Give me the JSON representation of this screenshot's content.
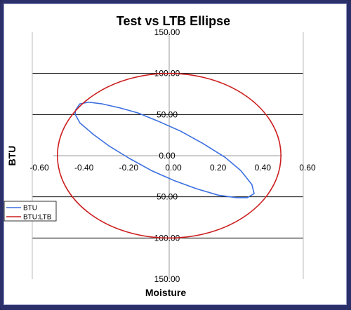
{
  "chart_data": {
    "type": "line",
    "title": "Test vs LTB Ellipse",
    "xlabel": "Moisture",
    "ylabel": "BTU",
    "xlim": [
      -0.6,
      0.6
    ],
    "ylim": [
      -150,
      150
    ],
    "x_ticks": [
      "-0.60",
      "-0.40",
      "-0.20",
      "0.00",
      "0.20",
      "0.40",
      "0.60"
    ],
    "y_ticks": [
      "150.00",
      "100.00",
      "50.00",
      "0.00",
      "50.00",
      "100.00",
      "150.00"
    ],
    "grid": "horizontal",
    "legend_position": "left",
    "series": [
      {
        "name": "BTU",
        "color": "#3b6fe0",
        "points": [
          [
            -0.42,
            55
          ],
          [
            -0.4,
            63
          ],
          [
            -0.36,
            65
          ],
          [
            -0.3,
            63
          ],
          [
            -0.22,
            58
          ],
          [
            -0.14,
            52
          ],
          [
            -0.05,
            42
          ],
          [
            0.05,
            30
          ],
          [
            0.15,
            15
          ],
          [
            0.25,
            -2
          ],
          [
            0.32,
            -18
          ],
          [
            0.37,
            -35
          ],
          [
            0.38,
            -46
          ],
          [
            0.35,
            -51
          ],
          [
            0.3,
            -51
          ],
          [
            0.22,
            -48
          ],
          [
            0.12,
            -40
          ],
          [
            0.02,
            -30
          ],
          [
            -0.08,
            -18
          ],
          [
            -0.18,
            -3
          ],
          [
            -0.27,
            12
          ],
          [
            -0.34,
            26
          ],
          [
            -0.4,
            40
          ],
          [
            -0.42,
            50
          ],
          [
            -0.42,
            55
          ]
        ]
      },
      {
        "name": "BTU:LTB",
        "color": "#cc1f1f",
        "shape": "ellipse",
        "center": [
          0,
          0
        ],
        "semi_axes": [
          0.5,
          100
        ]
      }
    ]
  }
}
